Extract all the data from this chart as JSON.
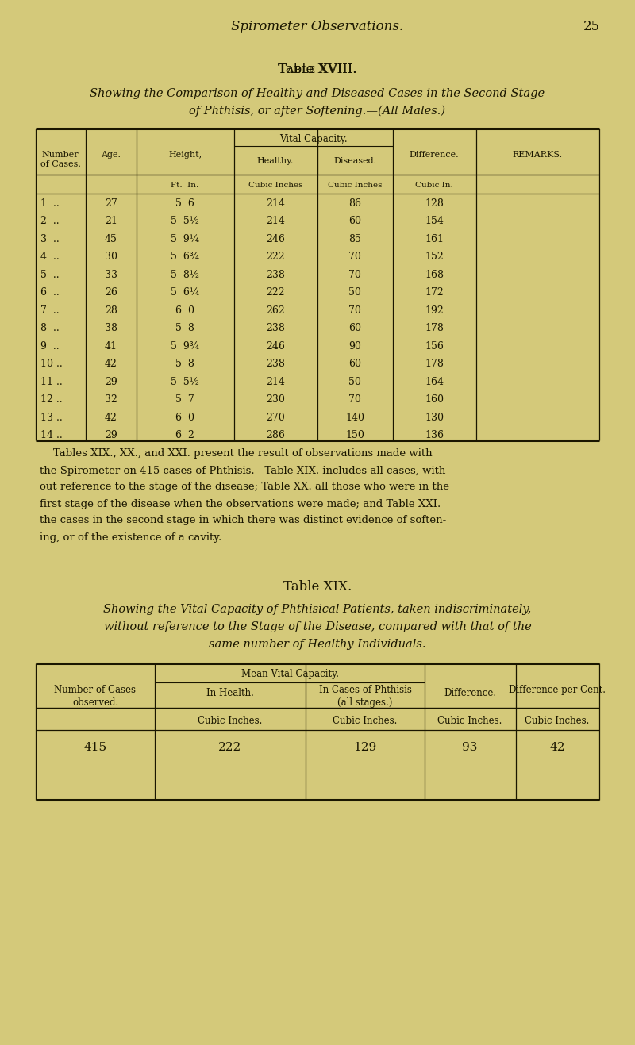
{
  "bg_color": "#d4c97a",
  "text_color": "#1a1600",
  "page_num": "25",
  "header_text": "Spirometer Observations.",
  "table18_title": "Table XVIII.",
  "table18_subtitle1": "Showing the Comparison of Healthy and Diseased Cases in the Second Stage",
  "table18_subtitle2": "of Phthisis, or after Softening.—(All Males.)",
  "table18_rows": [
    [
      "1  ..",
      "27",
      "5  6",
      "214",
      "86",
      "128"
    ],
    [
      "2  ..",
      "21",
      "5  5½",
      "214",
      "60",
      "154"
    ],
    [
      "3  ..",
      "45",
      "5  9¼",
      "246",
      "85",
      "161"
    ],
    [
      "4  ..",
      "30",
      "5  6¾",
      "222",
      "70",
      "152"
    ],
    [
      "5  ..",
      "33",
      "5  8½",
      "238",
      "70",
      "168"
    ],
    [
      "6  ..",
      "26",
      "5  6¼",
      "222",
      "50",
      "172"
    ],
    [
      "7  ..",
      "28",
      "6  0",
      "262",
      "70",
      "192"
    ],
    [
      "8  ..",
      "38",
      "5  8",
      "238",
      "60",
      "178"
    ],
    [
      "9  ..",
      "41",
      "5  9¾",
      "246",
      "90",
      "156"
    ],
    [
      "10 ..",
      "42",
      "5  8",
      "238",
      "60",
      "178"
    ],
    [
      "11 ..",
      "29",
      "5  5½",
      "214",
      "50",
      "164"
    ],
    [
      "12 ..",
      "32",
      "5  7",
      "230",
      "70",
      "160"
    ],
    [
      "13 ..",
      "42",
      "6  0",
      "270",
      "140",
      "130"
    ],
    [
      "14 ..",
      "29",
      "6  2",
      "286",
      "150",
      "136"
    ]
  ],
  "para_lines": [
    "    Tables XIX., XX., and XXI. present the result of observations made with",
    "the Spirometer on 415 cases of Phthisis.   Table XIX. includes all cases, with-",
    "out reference to the stage of the disease; Table XX. all those who were in the",
    "first stage of the disease when the observations were made; and Table XXI.",
    "the cases in the second stage in which there was distinct evidence of soften-",
    "ing, or of the existence of a cavity."
  ],
  "table19_title": "Table XIX.",
  "table19_subtitle1": "Showing the Vital Capacity of Phthisical Patients, taken indiscriminately,",
  "table19_subtitle2": "without reference to the Stage of the Disease, compared with that of the",
  "table19_subtitle3": "same number of Healthy Individuals.",
  "table19_val1": "415",
  "table19_val2": "222",
  "table19_val3": "129",
  "table19_val4": "93",
  "table19_val5": "42"
}
